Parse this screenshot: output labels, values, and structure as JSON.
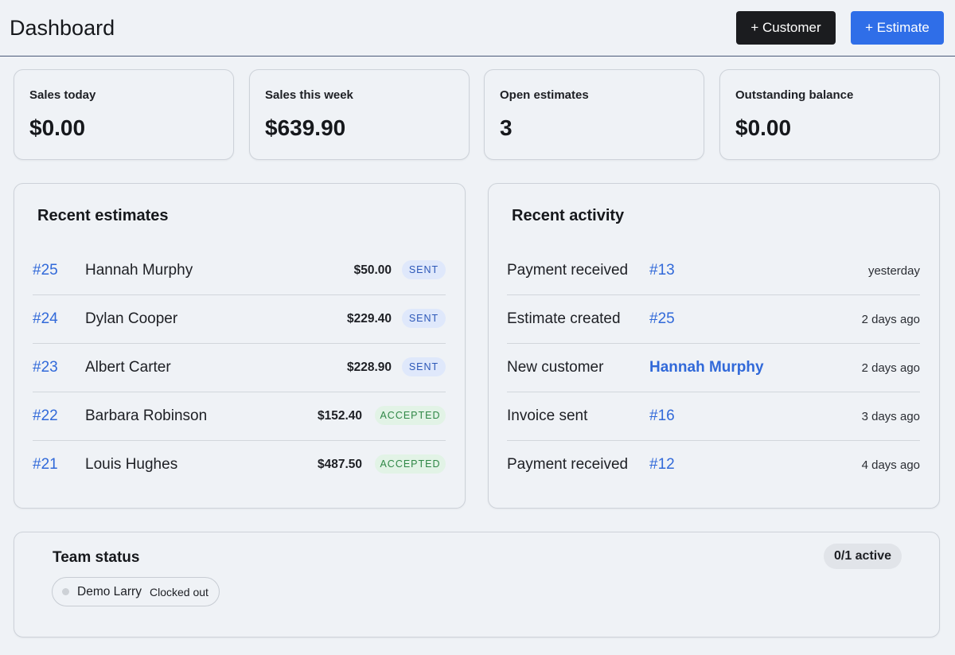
{
  "header": {
    "title": "Dashboard",
    "customer_button": "+ Customer",
    "estimate_button": "+ Estimate"
  },
  "stats": [
    {
      "label": "Sales today",
      "value": "$0.00"
    },
    {
      "label": "Sales this week",
      "value": "$639.90"
    },
    {
      "label": "Open estimates",
      "value": "3"
    },
    {
      "label": "Outstanding balance",
      "value": "$0.00"
    }
  ],
  "recent_estimates": {
    "title": "Recent estimates",
    "rows": [
      {
        "id": "#25",
        "name": "Hannah Murphy",
        "amount": "$50.00",
        "status": "SENT"
      },
      {
        "id": "#24",
        "name": "Dylan Cooper",
        "amount": "$229.40",
        "status": "SENT"
      },
      {
        "id": "#23",
        "name": "Albert Carter",
        "amount": "$228.90",
        "status": "SENT"
      },
      {
        "id": "#22",
        "name": "Barbara Robinson",
        "amount": "$152.40",
        "status": "ACCEPTED"
      },
      {
        "id": "#21",
        "name": "Louis Hughes",
        "amount": "$487.50",
        "status": "ACCEPTED"
      }
    ]
  },
  "recent_activity": {
    "title": "Recent activity",
    "rows": [
      {
        "label": "Payment received",
        "ref": "#13",
        "time": "yesterday"
      },
      {
        "label": "Estimate created",
        "ref": "#25",
        "time": "2 days ago"
      },
      {
        "label": "New customer",
        "ref": "Hannah Murphy",
        "time": "2 days ago"
      },
      {
        "label": "Invoice sent",
        "ref": "#16",
        "time": "3 days ago"
      },
      {
        "label": "Payment received",
        "ref": "#12",
        "time": "4 days ago"
      }
    ]
  },
  "team_status": {
    "title": "Team status",
    "active_count": "0/1 active",
    "members": [
      {
        "name": "Demo Larry",
        "status": "Clocked out"
      }
    ]
  },
  "colors": {
    "accent": "#2f6ee8",
    "link": "#3169d9",
    "sent_badge": "#dfe8fb",
    "accepted_badge": "#e2f3e6"
  }
}
